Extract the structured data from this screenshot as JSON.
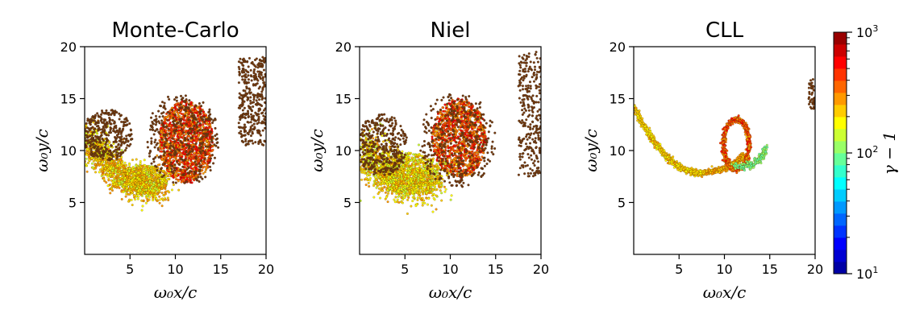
{
  "chart_data": [
    {
      "type": "scatter",
      "title": "Monte-Carlo",
      "xlabel": "ω₀x/c",
      "ylabel": "ω₀y/c",
      "xlim": [
        0,
        20
      ],
      "ylim": [
        0,
        20
      ],
      "xticks": [
        "5",
        "10",
        "15",
        "20"
      ],
      "yticks": [
        "5",
        "10",
        "15",
        "20"
      ],
      "grid": false,
      "color_by": "γ-1",
      "components": [
        {
          "shape": "blob",
          "cx": 11.2,
          "cy": 10.8,
          "rx": 3.0,
          "ry": 4.0,
          "gamma_min": 250,
          "gamma_max": 650,
          "count": 1400
        },
        {
          "shape": "arc",
          "from": [
            0.3,
            11.5
          ],
          "to": [
            8.5,
            6.6
          ],
          "ctrl": [
            3.5,
            6.2
          ],
          "spread": 1.4,
          "gamma_min": 150,
          "gamma_max": 320,
          "count": 1400
        },
        {
          "shape": "blob",
          "cx": 6.5,
          "cy": 7.2,
          "rx": 2.8,
          "ry": 1.4,
          "gamma_min": 140,
          "gamma_max": 300,
          "count": 500
        },
        {
          "shape": "blob",
          "cx": 2.5,
          "cy": 11.5,
          "rx": 2.8,
          "ry": 2.5,
          "gamma_min": 80,
          "gamma_max": 200,
          "count": 350,
          "dark": true
        },
        {
          "shape": "blob",
          "cx": 10.8,
          "cy": 11.0,
          "rx": 4.0,
          "ry": 4.6,
          "gamma_min": 40,
          "gamma_max": 120,
          "count": 350,
          "dark": true
        },
        {
          "shape": "strip",
          "x_min": 17.0,
          "x_max": 20.0,
          "y_min": 10.5,
          "y_max": 19.0,
          "gamma_min": 50,
          "gamma_max": 200,
          "count": 350,
          "dark": true
        }
      ]
    },
    {
      "type": "scatter",
      "title": "Niel",
      "xlabel": "ω₀x/c",
      "ylabel": "ω₀y/c",
      "xlim": [
        0,
        20
      ],
      "ylim": [
        0,
        20
      ],
      "xticks": [
        "5",
        "10",
        "15",
        "20"
      ],
      "yticks": [
        "5",
        "10",
        "15",
        "20"
      ],
      "grid": false,
      "color_by": "γ-1",
      "components": [
        {
          "shape": "blob",
          "cx": 11.0,
          "cy": 11.2,
          "rx": 3.0,
          "ry": 3.8,
          "gamma_min": 250,
          "gamma_max": 650,
          "count": 1200
        },
        {
          "shape": "arc",
          "from": [
            0.3,
            10.5
          ],
          "to": [
            8.5,
            7.2
          ],
          "ctrl": [
            3.5,
            6.0
          ],
          "spread": 1.8,
          "gamma_min": 140,
          "gamma_max": 300,
          "count": 1400
        },
        {
          "shape": "blob",
          "cx": 5.5,
          "cy": 7.8,
          "rx": 3.4,
          "ry": 2.0,
          "gamma_min": 130,
          "gamma_max": 280,
          "count": 500
        },
        {
          "shape": "blob",
          "cx": 2.5,
          "cy": 10.5,
          "rx": 2.8,
          "ry": 3.0,
          "gamma_min": 80,
          "gamma_max": 200,
          "count": 350,
          "dark": true
        },
        {
          "shape": "blob",
          "cx": 10.8,
          "cy": 11.0,
          "rx": 4.2,
          "ry": 4.6,
          "gamma_min": 40,
          "gamma_max": 120,
          "count": 350,
          "dark": true
        },
        {
          "shape": "strip",
          "x_min": 17.5,
          "x_max": 20.0,
          "y_min": 7.5,
          "y_max": 19.5,
          "gamma_min": 50,
          "gamma_max": 200,
          "count": 280,
          "dark": true
        }
      ]
    },
    {
      "type": "scatter",
      "title": "CLL",
      "xlabel": "ω₀x/c",
      "ylabel": "ω₀y/c",
      "xlim": [
        0,
        20
      ],
      "ylim": [
        0,
        20
      ],
      "xticks": [
        "5",
        "10",
        "15",
        "20"
      ],
      "yticks": [
        "5",
        "10",
        "15",
        "20"
      ],
      "grid": false,
      "color_by": "γ-1",
      "components": [
        {
          "shape": "arc",
          "from": [
            0.0,
            14.2
          ],
          "to": [
            8.0,
            7.9
          ],
          "ctrl": [
            4.0,
            7.2
          ],
          "spread": 0.25,
          "gamma_min": 180,
          "gamma_max": 260,
          "count": 700
        },
        {
          "shape": "arc",
          "from": [
            8.0,
            7.9
          ],
          "to": [
            12.0,
            9.5
          ],
          "ctrl": [
            11.0,
            8.2
          ],
          "spread": 0.25,
          "gamma_min": 220,
          "gamma_max": 320,
          "count": 300
        },
        {
          "shape": "ring",
          "cx": 11.3,
          "cy": 10.6,
          "rx": 1.4,
          "ry": 2.4,
          "spread": 0.25,
          "gamma_min": 250,
          "gamma_max": 550,
          "count": 700
        },
        {
          "shape": "arc",
          "from": [
            11.0,
            8.5
          ],
          "to": [
            14.5,
            10.2
          ],
          "ctrl": [
            13.8,
            8.2
          ],
          "spread": 0.3,
          "gamma_min": 80,
          "gamma_max": 120,
          "count": 220
        },
        {
          "shape": "strip",
          "x_min": 19.3,
          "x_max": 20.0,
          "y_min": 14.0,
          "y_max": 17.0,
          "gamma_min": 50,
          "gamma_max": 200,
          "count": 40,
          "dark": true
        }
      ]
    }
  ],
  "colorbar": {
    "label": "γ − 1",
    "scale": "log",
    "range": [
      10,
      1000
    ],
    "bands": 20,
    "tick_labels": [
      {
        "base": "10",
        "exp": "1"
      },
      {
        "base": "10",
        "exp": "2"
      },
      {
        "base": "10",
        "exp": "3"
      }
    ],
    "colormap": [
      "#00008f",
      "#0000ff",
      "#0080ff",
      "#00ffff",
      "#80ff80",
      "#ffff00",
      "#ff8000",
      "#ff0000",
      "#800000"
    ]
  }
}
